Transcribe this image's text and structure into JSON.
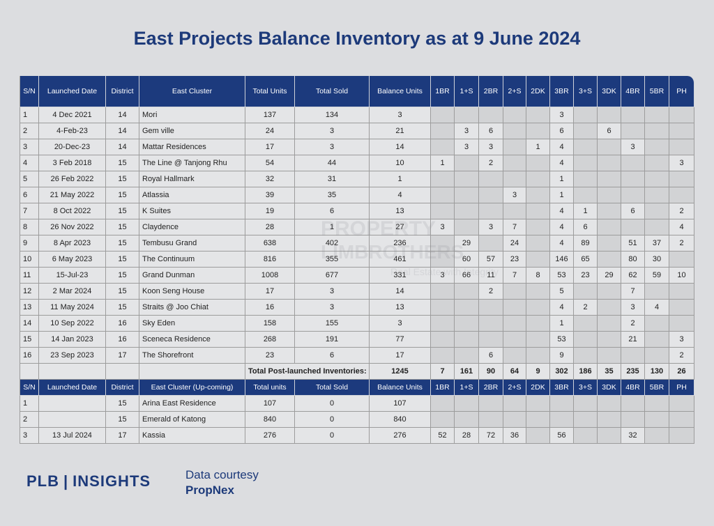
{
  "title": "East Projects Balance Inventory as at 9 June 2024",
  "table": {
    "columns": [
      "S/N",
      "Launched Date",
      "District",
      "East Cluster",
      "Total Units",
      "Total Sold",
      "Balance Units",
      "1BR",
      "1+S",
      "2BR",
      "2+S",
      "2DK",
      "3BR",
      "3+S",
      "3DK",
      "4BR",
      "5BR",
      "PH"
    ],
    "rows": [
      [
        1,
        "4 Dec 2021",
        14,
        "Mori",
        137,
        134,
        3,
        null,
        null,
        null,
        null,
        null,
        3,
        null,
        null,
        null,
        null,
        null
      ],
      [
        2,
        "4-Feb-23",
        14,
        "Gem ville",
        24,
        3,
        21,
        null,
        3,
        6,
        null,
        null,
        6,
        null,
        6,
        null,
        null,
        null
      ],
      [
        3,
        "20-Dec-23",
        14,
        "Mattar Residences",
        17,
        3,
        14,
        null,
        3,
        3,
        null,
        1,
        4,
        null,
        null,
        3,
        null,
        null
      ],
      [
        4,
        "3 Feb 2018",
        15,
        "The Line @ Tanjong Rhu",
        54,
        44,
        10,
        1,
        null,
        2,
        null,
        null,
        4,
        null,
        null,
        null,
        null,
        3
      ],
      [
        5,
        "26 Feb 2022",
        15,
        "Royal Hallmark",
        32,
        31,
        1,
        null,
        null,
        null,
        null,
        null,
        1,
        null,
        null,
        null,
        null,
        null
      ],
      [
        6,
        "21 May 2022",
        15,
        "Atlassia",
        39,
        35,
        4,
        null,
        null,
        null,
        3,
        null,
        1,
        null,
        null,
        null,
        null,
        null
      ],
      [
        7,
        "8 Oct 2022",
        15,
        "K Suites",
        19,
        6,
        13,
        null,
        null,
        null,
        null,
        null,
        4,
        1,
        null,
        6,
        null,
        2
      ],
      [
        8,
        "26 Nov 2022",
        15,
        "Claydence",
        28,
        1,
        27,
        3,
        null,
        3,
        7,
        null,
        4,
        6,
        null,
        null,
        null,
        4
      ],
      [
        9,
        "8 Apr 2023",
        15,
        "Tembusu Grand",
        638,
        402,
        236,
        null,
        29,
        null,
        24,
        null,
        4,
        89,
        null,
        51,
        37,
        2
      ],
      [
        10,
        "6 May 2023",
        15,
        "The Continuum",
        816,
        355,
        461,
        null,
        60,
        57,
        23,
        null,
        146,
        65,
        null,
        80,
        30,
        null
      ],
      [
        11,
        "15-Jul-23",
        15,
        "Grand Dunman",
        1008,
        677,
        331,
        3,
        66,
        11,
        7,
        8,
        53,
        23,
        29,
        62,
        59,
        10
      ],
      [
        12,
        "2 Mar 2024",
        15,
        "Koon Seng House",
        17,
        3,
        14,
        null,
        null,
        2,
        null,
        null,
        5,
        null,
        null,
        7,
        null,
        null
      ],
      [
        13,
        "11 May 2024",
        15,
        "Straits @ Joo Chiat",
        16,
        3,
        13,
        null,
        null,
        null,
        null,
        null,
        4,
        2,
        null,
        3,
        4,
        null
      ],
      [
        14,
        "10 Sep 2022",
        16,
        "Sky Eden",
        158,
        155,
        3,
        null,
        null,
        null,
        null,
        null,
        1,
        null,
        null,
        2,
        null,
        null
      ],
      [
        15,
        "14 Jan 2023",
        16,
        "Sceneca Residence",
        268,
        191,
        77,
        null,
        null,
        null,
        null,
        null,
        53,
        null,
        null,
        21,
        null,
        3
      ],
      [
        16,
        "23 Sep 2023",
        17,
        "The Shorefront",
        23,
        6,
        17,
        null,
        null,
        6,
        null,
        null,
        9,
        null,
        null,
        null,
        null,
        2
      ]
    ],
    "total": {
      "label": "Total Post-launched Inventories:",
      "values": [
        1245,
        7,
        161,
        90,
        64,
        9,
        302,
        186,
        35,
        235,
        130,
        26
      ]
    }
  },
  "upcoming": {
    "columns": [
      "S/N",
      "Launched Date",
      "District",
      "East Cluster (Up-coming)",
      "Total units",
      "Total Sold",
      "Balance Units",
      "1BR",
      "1+S",
      "2BR",
      "2+S",
      "2DK",
      "3BR",
      "3+S",
      "3DK",
      "4BR",
      "5BR",
      "PH"
    ],
    "rows": [
      [
        1,
        null,
        15,
        "Arina East Residence",
        107,
        0,
        107,
        null,
        null,
        null,
        null,
        null,
        null,
        null,
        null,
        null,
        null,
        null
      ],
      [
        2,
        null,
        15,
        "Emerald of Katong",
        840,
        0,
        840,
        null,
        null,
        null,
        null,
        null,
        null,
        null,
        null,
        null,
        null,
        null
      ],
      [
        3,
        "13 Jul 2024",
        17,
        "Kassia",
        276,
        0,
        276,
        52,
        28,
        72,
        36,
        null,
        56,
        null,
        null,
        32,
        null,
        null
      ]
    ]
  },
  "watermark": {
    "line1": "PROPERTY",
    "line2": "LIMBROTHERS",
    "line3": "Real Estate with Integrity"
  },
  "footer": {
    "brand": "PLB",
    "divider": "|",
    "product": "INSIGHTS",
    "credit": "Data courtesy",
    "source": "PropNex"
  }
}
